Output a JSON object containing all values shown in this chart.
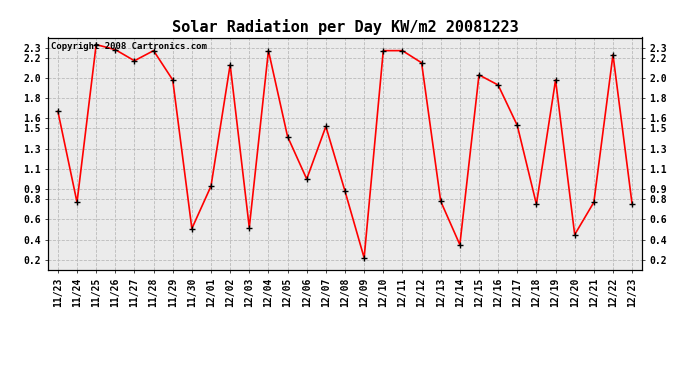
{
  "title": "Solar Radiation per Day KW/m2 20081223",
  "copyright_text": "Copyright 2008 Cartronics.com",
  "labels": [
    "11/23",
    "11/24",
    "11/25",
    "11/26",
    "11/27",
    "11/28",
    "11/29",
    "11/30",
    "12/01",
    "12/02",
    "12/03",
    "12/04",
    "12/05",
    "12/06",
    "12/07",
    "12/08",
    "12/09",
    "12/10",
    "12/11",
    "12/12",
    "12/13",
    "12/14",
    "12/15",
    "12/16",
    "12/17",
    "12/18",
    "12/19",
    "12/20",
    "12/21",
    "12/22",
    "12/23"
  ],
  "values": [
    1.67,
    0.77,
    2.33,
    2.28,
    2.17,
    2.27,
    1.98,
    0.51,
    0.93,
    2.13,
    0.52,
    2.27,
    1.42,
    1.0,
    1.52,
    0.88,
    0.22,
    2.27,
    2.27,
    2.15,
    0.78,
    0.35,
    2.03,
    1.93,
    1.53,
    0.75,
    1.98,
    0.45,
    0.77,
    2.23,
    0.75
  ],
  "ylim": [
    0.1,
    2.4
  ],
  "yticks": [
    0.2,
    0.4,
    0.6,
    0.8,
    0.9,
    1.1,
    1.3,
    1.5,
    1.6,
    1.8,
    2.0,
    2.2,
    2.3
  ],
  "ytick_labels": [
    "0.2",
    "0.4",
    "0.6",
    "0.8",
    "0.9",
    "1.1",
    "1.3",
    "1.5",
    "1.6",
    "1.8",
    "2.0",
    "2.2",
    "2.3"
  ],
  "line_color": "red",
  "marker": "+",
  "marker_color": "black",
  "bg_color": "#ffffff",
  "plot_bg_color": "#ebebeb",
  "grid_color": "#bbbbbb",
  "title_fontsize": 11,
  "tick_fontsize": 7,
  "copyright_fontsize": 6.5
}
